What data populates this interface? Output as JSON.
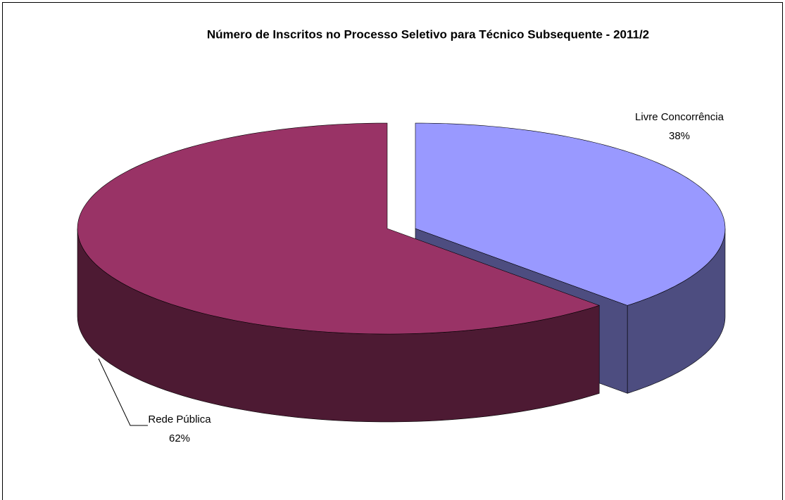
{
  "chart_data": {
    "type": "pie",
    "title": "Número de Inscritos no Processo Seletivo para Técnico Subsequente - 2011/2",
    "categories": [
      "Livre Concorrência",
      "Rede Pública"
    ],
    "values": [
      38,
      62
    ],
    "value_labels": [
      "38%",
      "62%"
    ],
    "colors": [
      "#9999ff",
      "#993366"
    ]
  }
}
